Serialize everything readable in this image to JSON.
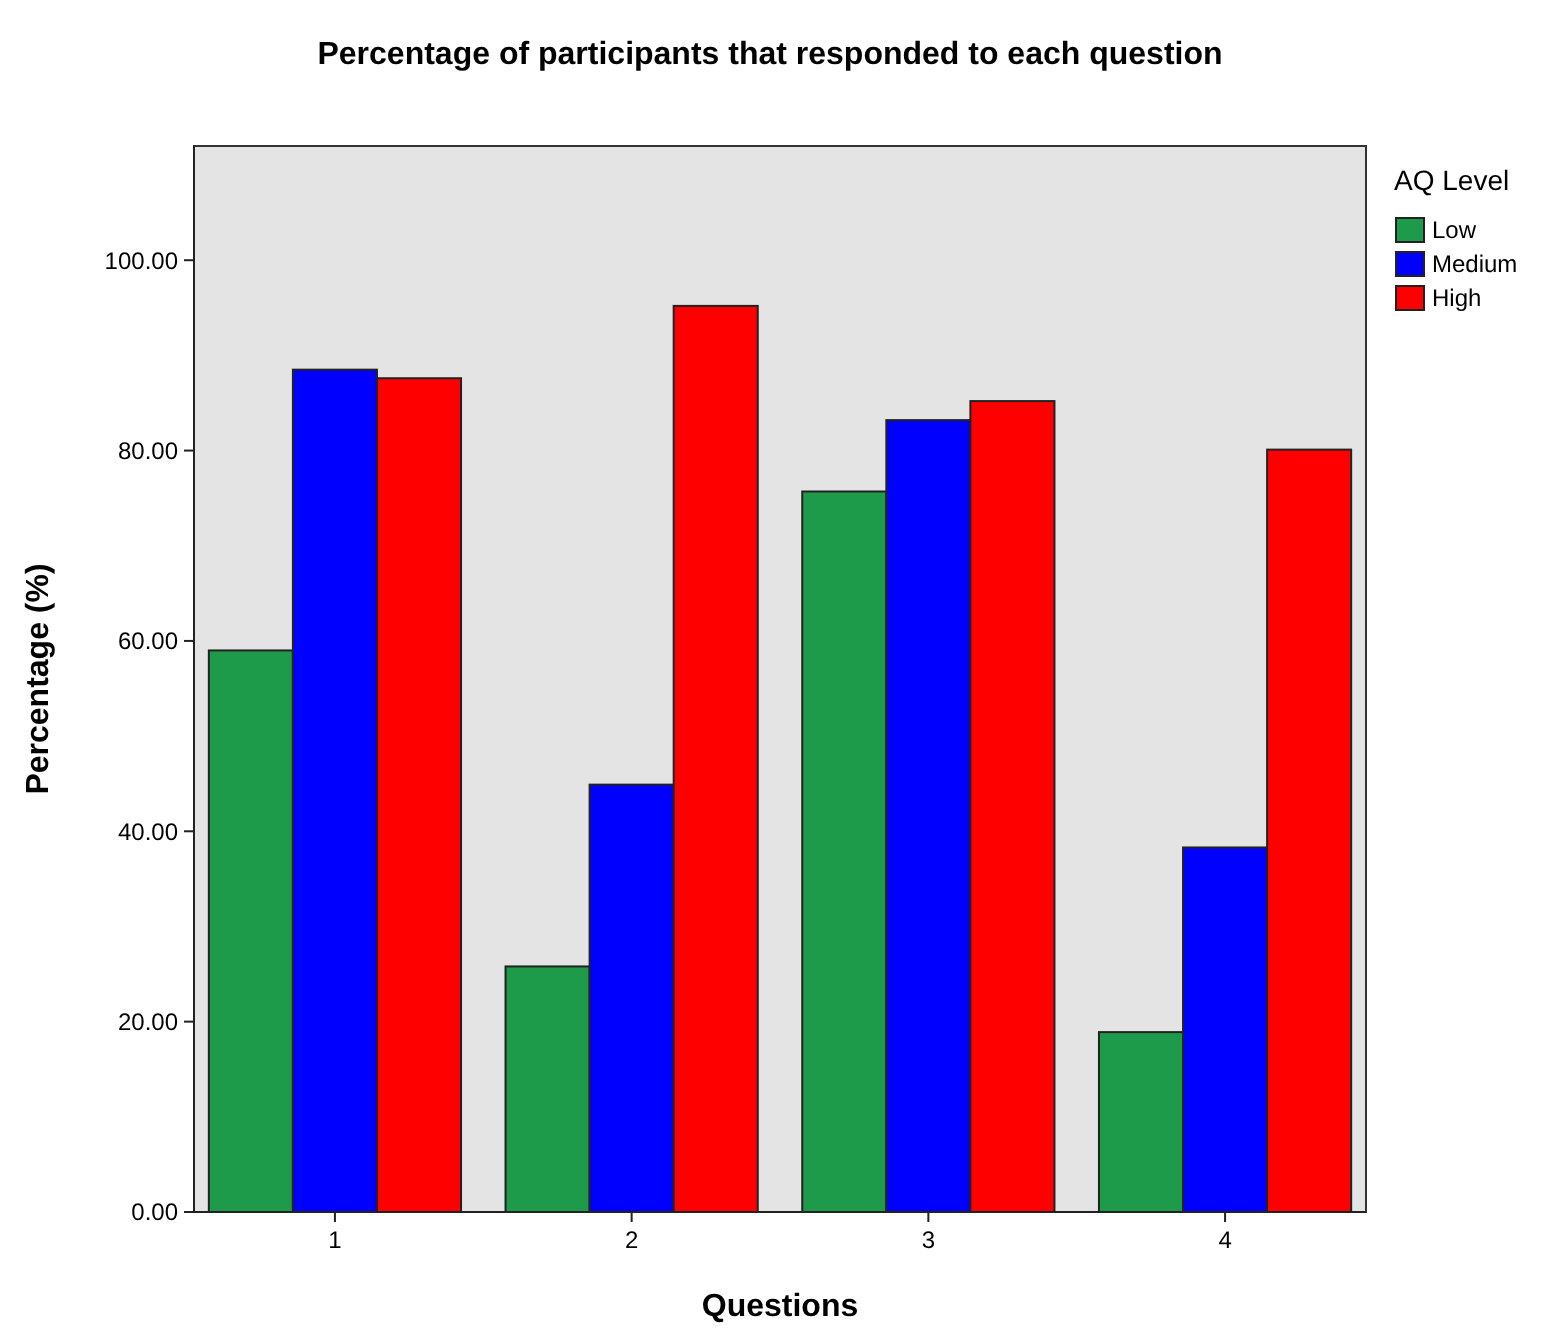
{
  "chart_data": {
    "type": "bar",
    "title": "Percentage of participants that responded to each question",
    "xlabel": "Questions",
    "ylabel": "Percentage (%)",
    "legend_title": "AQ Level",
    "categories": [
      "1",
      "2",
      "3",
      "4"
    ],
    "series": [
      {
        "name": "Low",
        "color": "#1e9a4b",
        "values": [
          59.0,
          25.8,
          75.7,
          18.9
        ]
      },
      {
        "name": "Medium",
        "color": "#0000ff",
        "values": [
          88.5,
          44.9,
          83.2,
          38.3
        ]
      },
      {
        "name": "High",
        "color": "#ff0000",
        "values": [
          87.6,
          95.2,
          85.2,
          80.1
        ]
      }
    ],
    "ylim": [
      0,
      112
    ],
    "yticks": [
      {
        "value": 0,
        "label": "0.00"
      },
      {
        "value": 20,
        "label": "20.00"
      },
      {
        "value": 40,
        "label": "40.00"
      },
      {
        "value": 60,
        "label": "60.00"
      },
      {
        "value": 80,
        "label": "80.00"
      },
      {
        "value": 100,
        "label": "100.00"
      }
    ],
    "grid": false,
    "legend": "top right"
  }
}
